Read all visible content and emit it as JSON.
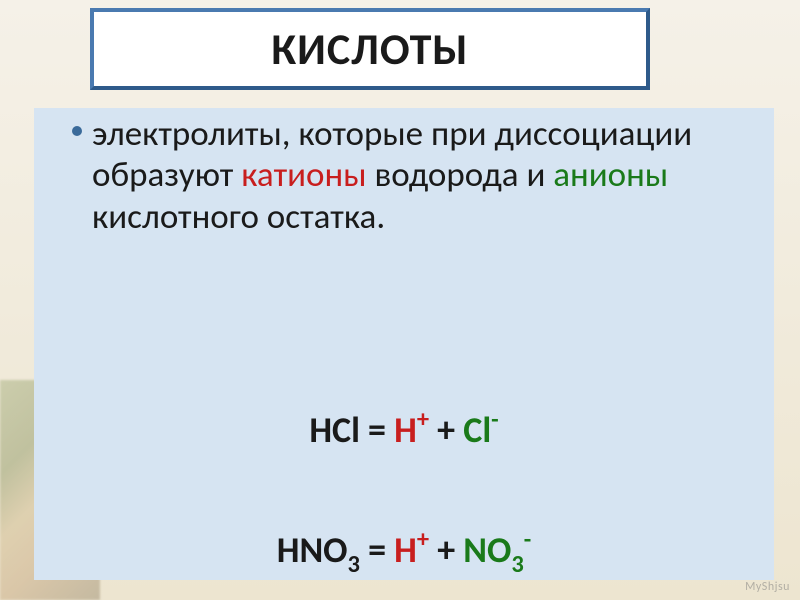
{
  "slide": {
    "title": "КИСЛОТЫ",
    "definition": {
      "part1": "электролиты, которые при диссоциации образуют ",
      "cations_word": "катионы",
      "part2": " водорода и ",
      "anions_word": "анионы",
      "part3": " кислотного остатка."
    },
    "equation1": {
      "lhs": "HCl",
      "eq": " = ",
      "h": "H",
      "h_sup": "+",
      "plus": " + ",
      "anion": "Cl",
      "anion_sup": "-"
    },
    "equation2": {
      "lhs_h": "HNO",
      "lhs_sub": "3",
      "eq": " = ",
      "h": "H",
      "h_sup": "+",
      "plus": " + ",
      "anion": "NO",
      "anion_sub": "3",
      "anion_sup": "-"
    },
    "watermark": "MyShjsu"
  },
  "style": {
    "content_bg": "#d6e4f2",
    "title_bg": "#ffffff",
    "title_border": "#4a7ab0",
    "text_color": "#1a1a1a",
    "cation_color": "#c81e1e",
    "anion_color": "#1a7a1a",
    "bullet_color": "#3a6a9a",
    "title_fontsize": 44,
    "body_fontsize": 35,
    "eq_fontsize": 36
  }
}
